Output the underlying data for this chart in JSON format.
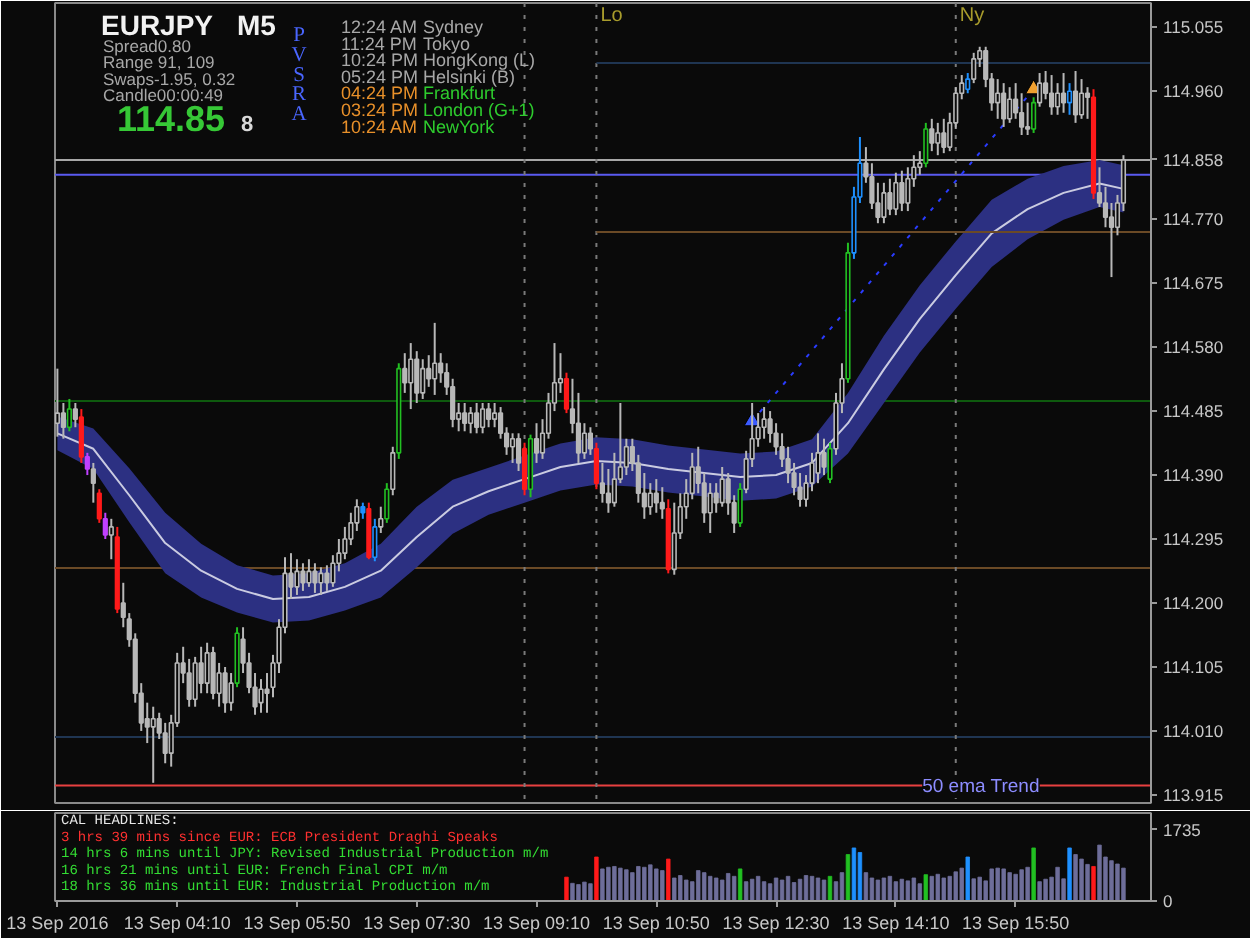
{
  "chart_data": [
    {
      "type": "candlestick",
      "title": "EURJPY",
      "subtitle": "M5",
      "x": [
        "2016-09-13T02:30",
        "2016-09-13T02:35",
        "2016-09-13T02:40",
        "2016-09-13T02:45",
        "2016-09-13T02:50",
        "2016-09-13T02:55",
        "2016-09-13T03:00",
        "2016-09-13T03:05",
        "2016-09-13T03:10",
        "2016-09-13T03:15",
        "2016-09-13T03:20",
        "2016-09-13T03:25",
        "2016-09-13T03:30",
        "2016-09-13T03:35",
        "2016-09-13T03:40",
        "2016-09-13T03:45",
        "2016-09-13T03:50",
        "2016-09-13T03:55",
        "2016-09-13T04:00",
        "2016-09-13T04:05",
        "2016-09-13T04:10",
        "2016-09-13T04:15",
        "2016-09-13T04:20",
        "2016-09-13T04:25",
        "2016-09-13T04:30",
        "2016-09-13T04:35",
        "2016-09-13T04:40",
        "2016-09-13T04:45",
        "2016-09-13T04:50",
        "2016-09-13T04:55",
        "2016-09-13T05:00",
        "2016-09-13T05:05",
        "2016-09-13T05:10",
        "2016-09-13T05:15",
        "2016-09-13T05:20",
        "2016-09-13T05:25",
        "2016-09-13T05:30",
        "2016-09-13T05:35",
        "2016-09-13T05:40",
        "2016-09-13T05:45",
        "2016-09-13T05:50",
        "2016-09-13T05:55",
        "2016-09-13T06:00",
        "2016-09-13T06:05",
        "2016-09-13T06:10",
        "2016-09-13T06:15",
        "2016-09-13T06:20",
        "2016-09-13T06:25",
        "2016-09-13T06:30",
        "2016-09-13T06:35",
        "2016-09-13T06:40",
        "2016-09-13T06:45",
        "2016-09-13T06:50",
        "2016-09-13T06:55",
        "2016-09-13T07:00",
        "2016-09-13T07:05",
        "2016-09-13T07:10",
        "2016-09-13T07:15",
        "2016-09-13T07:20",
        "2016-09-13T07:25",
        "2016-09-13T07:30",
        "2016-09-13T07:35",
        "2016-09-13T07:40",
        "2016-09-13T07:45",
        "2016-09-13T07:50",
        "2016-09-13T07:55",
        "2016-09-13T08:00",
        "2016-09-13T08:05",
        "2016-09-13T08:10",
        "2016-09-13T08:15",
        "2016-09-13T08:20",
        "2016-09-13T08:25",
        "2016-09-13T08:30",
        "2016-09-13T08:35",
        "2016-09-13T08:40",
        "2016-09-13T08:45",
        "2016-09-13T08:50",
        "2016-09-13T08:55",
        "2016-09-13T09:00",
        "2016-09-13T09:05",
        "2016-09-13T09:10",
        "2016-09-13T09:15",
        "2016-09-13T09:20",
        "2016-09-13T09:25",
        "2016-09-13T09:30",
        "2016-09-13T09:35",
        "2016-09-13T09:40",
        "2016-09-13T09:45",
        "2016-09-13T09:50",
        "2016-09-13T09:55",
        "2016-09-13T10:00",
        "2016-09-13T10:05",
        "2016-09-13T10:10",
        "2016-09-13T10:15",
        "2016-09-13T10:20",
        "2016-09-13T10:25",
        "2016-09-13T10:30",
        "2016-09-13T10:35",
        "2016-09-13T10:40",
        "2016-09-13T10:45",
        "2016-09-13T10:50",
        "2016-09-13T10:55",
        "2016-09-13T11:00",
        "2016-09-13T11:05",
        "2016-09-13T11:10",
        "2016-09-13T11:15",
        "2016-09-13T11:20",
        "2016-09-13T11:25",
        "2016-09-13T11:30",
        "2016-09-13T11:35",
        "2016-09-13T11:40",
        "2016-09-13T11:45",
        "2016-09-13T11:50",
        "2016-09-13T11:55",
        "2016-09-13T12:00",
        "2016-09-13T12:05",
        "2016-09-13T12:10",
        "2016-09-13T12:15",
        "2016-09-13T12:20",
        "2016-09-13T12:25",
        "2016-09-13T12:30",
        "2016-09-13T12:35",
        "2016-09-13T12:40",
        "2016-09-13T12:45",
        "2016-09-13T12:50",
        "2016-09-13T12:55",
        "2016-09-13T13:00",
        "2016-09-13T13:05",
        "2016-09-13T13:10",
        "2016-09-13T13:15",
        "2016-09-13T13:20",
        "2016-09-13T13:25",
        "2016-09-13T13:30",
        "2016-09-13T13:35",
        "2016-09-13T13:40",
        "2016-09-13T13:45",
        "2016-09-13T13:50",
        "2016-09-13T13:55",
        "2016-09-13T14:00",
        "2016-09-13T14:05",
        "2016-09-13T14:10",
        "2016-09-13T14:15",
        "2016-09-13T14:20",
        "2016-09-13T14:25",
        "2016-09-13T14:30",
        "2016-09-13T14:35",
        "2016-09-13T14:40",
        "2016-09-13T14:45",
        "2016-09-13T14:50",
        "2016-09-13T14:55",
        "2016-09-13T15:00",
        "2016-09-13T15:05",
        "2016-09-13T15:10",
        "2016-09-13T15:15",
        "2016-09-13T15:20",
        "2016-09-13T15:25",
        "2016-09-13T15:30",
        "2016-09-13T15:35",
        "2016-09-13T15:40",
        "2016-09-13T15:45",
        "2016-09-13T15:50",
        "2016-09-13T15:55",
        "2016-09-13T16:00",
        "2016-09-13T16:05",
        "2016-09-13T16:10",
        "2016-09-13T16:15",
        "2016-09-13T16:20",
        "2016-09-13T16:25",
        "2016-09-13T16:30",
        "2016-09-13T16:35",
        "2016-09-13T16:40",
        "2016-09-13T16:45",
        "2016-09-13T16:50",
        "2016-09-13T16:55",
        "2016-09-13T17:00",
        "2016-09-13T17:05",
        "2016-09-13T17:10",
        "2016-09-13T17:15",
        "2016-09-13T17:20"
      ],
      "ohlc": [
        [
          114.467,
          114.548,
          114.447,
          114.482
        ],
        [
          114.482,
          114.497,
          114.444,
          114.461
        ],
        [
          114.461,
          114.503,
          114.455,
          114.488
        ],
        [
          114.488,
          114.497,
          114.461,
          114.473
        ],
        [
          114.476,
          114.488,
          114.408,
          114.417
        ],
        [
          114.417,
          114.423,
          114.39,
          114.399
        ],
        [
          114.399,
          114.408,
          114.349,
          114.378
        ],
        [
          114.363,
          114.369,
          114.319,
          114.325
        ],
        [
          114.325,
          114.334,
          114.295,
          114.301
        ],
        [
          114.301,
          114.325,
          114.265,
          114.313
        ],
        [
          114.298,
          114.313,
          114.185,
          114.191
        ],
        [
          114.2,
          114.23,
          114.164,
          114.179
        ],
        [
          114.176,
          114.185,
          114.135,
          114.146
        ],
        [
          114.146,
          114.155,
          114.052,
          114.066
        ],
        [
          114.066,
          114.081,
          114.01,
          114.022
        ],
        [
          114.028,
          114.052,
          113.992,
          114.016
        ],
        [
          114.016,
          114.046,
          113.933,
          114.028
        ],
        [
          114.028,
          114.037,
          113.998,
          114.007
        ],
        [
          114.007,
          114.022,
          113.962,
          113.977
        ],
        [
          113.977,
          114.034,
          113.957,
          114.022
        ],
        [
          114.022,
          114.126,
          114.016,
          114.111
        ],
        [
          114.111,
          114.135,
          114.081,
          114.096
        ],
        [
          114.096,
          114.117,
          114.046,
          114.057
        ],
        [
          114.057,
          114.12,
          114.046,
          114.111
        ],
        [
          114.111,
          114.135,
          114.066,
          114.081
        ],
        [
          114.081,
          114.141,
          114.066,
          114.126
        ],
        [
          114.126,
          114.135,
          114.057,
          114.066
        ],
        [
          114.066,
          114.111,
          114.046,
          114.096
        ],
        [
          114.096,
          114.105,
          114.037,
          114.052
        ],
        [
          114.052,
          114.096,
          114.04,
          114.081
        ],
        [
          114.081,
          114.164,
          114.075,
          114.155
        ],
        [
          114.146,
          114.164,
          114.096,
          114.111
        ],
        [
          114.111,
          114.126,
          114.066,
          114.075
        ],
        [
          114.075,
          114.096,
          114.034,
          114.046
        ],
        [
          114.052,
          114.087,
          114.037,
          114.072
        ],
        [
          114.072,
          114.096,
          114.037,
          114.066
        ],
        [
          114.075,
          114.123,
          114.06,
          114.111
        ],
        [
          114.111,
          114.176,
          114.096,
          114.164
        ],
        [
          114.164,
          114.268,
          114.155,
          114.244
        ],
        [
          114.244,
          114.274,
          114.206,
          114.224
        ],
        [
          114.224,
          114.265,
          114.212,
          114.247
        ],
        [
          114.247,
          114.259,
          114.218,
          114.23
        ],
        [
          114.23,
          114.265,
          114.224,
          114.247
        ],
        [
          114.247,
          114.259,
          114.215,
          114.23
        ],
        [
          114.23,
          114.253,
          114.212,
          114.244
        ],
        [
          114.244,
          114.256,
          114.218,
          114.23
        ],
        [
          114.23,
          114.271,
          114.224,
          114.259
        ],
        [
          114.259,
          114.295,
          114.247,
          114.274
        ],
        [
          114.274,
          114.313,
          114.265,
          114.295
        ],
        [
          114.295,
          114.334,
          114.286,
          114.319
        ],
        [
          114.319,
          114.354,
          114.307,
          114.343
        ],
        [
          114.343,
          114.349,
          114.325,
          114.334
        ],
        [
          114.34,
          114.349,
          114.265,
          114.268
        ],
        [
          114.268,
          114.325,
          114.262,
          114.313
        ],
        [
          114.313,
          114.343,
          114.304,
          114.325
        ],
        [
          114.325,
          114.378,
          114.319,
          114.369
        ],
        [
          114.369,
          114.432,
          114.36,
          114.423
        ],
        [
          114.423,
          114.556,
          114.414,
          114.548
        ],
        [
          114.548,
          114.571,
          114.512,
          114.527
        ],
        [
          114.527,
          114.586,
          114.488,
          114.562
        ],
        [
          114.562,
          114.574,
          114.497,
          114.512
        ],
        [
          114.512,
          114.562,
          114.503,
          114.548
        ],
        [
          114.548,
          114.568,
          114.521,
          114.533
        ],
        [
          114.533,
          114.616,
          114.509,
          114.556
        ],
        [
          114.556,
          114.571,
          114.527,
          114.542
        ],
        [
          114.542,
          114.556,
          114.509,
          114.521
        ],
        [
          114.521,
          114.533,
          114.461,
          114.473
        ],
        [
          114.473,
          114.497,
          114.455,
          114.482
        ],
        [
          114.482,
          114.497,
          114.455,
          114.467
        ],
        [
          114.467,
          114.491,
          114.452,
          114.482
        ],
        [
          114.482,
          114.497,
          114.452,
          114.461
        ],
        [
          114.461,
          114.497,
          114.452,
          114.488
        ],
        [
          114.488,
          114.497,
          114.461,
          114.473
        ],
        [
          114.473,
          114.497,
          114.461,
          114.482
        ],
        [
          114.482,
          114.491,
          114.444,
          114.452
        ],
        [
          114.452,
          114.461,
          114.42,
          114.432
        ],
        [
          114.432,
          114.452,
          114.408,
          114.444
        ],
        [
          114.444,
          114.452,
          114.396,
          114.408
        ],
        [
          114.429,
          114.438,
          114.36,
          114.369
        ],
        [
          114.369,
          114.45,
          114.357,
          114.444
        ],
        [
          114.444,
          114.467,
          114.408,
          114.423
        ],
        [
          114.423,
          114.473,
          114.414,
          114.452
        ],
        [
          114.452,
          114.512,
          114.444,
          114.497
        ],
        [
          114.497,
          114.586,
          114.485,
          114.527
        ],
        [
          114.527,
          114.571,
          114.512,
          114.533
        ],
        [
          114.533,
          114.542,
          114.482,
          114.488
        ],
        [
          114.488,
          114.533,
          114.452,
          114.467
        ],
        [
          114.467,
          114.512,
          114.408,
          114.423
        ],
        [
          114.423,
          114.467,
          114.414,
          114.452
        ],
        [
          114.452,
          114.461,
          114.42,
          114.429
        ],
        [
          114.429,
          114.438,
          114.369,
          114.378
        ],
        [
          114.378,
          114.408,
          114.349,
          114.363
        ],
        [
          114.363,
          114.399,
          114.334,
          114.349
        ],
        [
          114.349,
          114.423,
          114.343,
          114.384
        ],
        [
          114.384,
          114.497,
          114.378,
          114.402
        ],
        [
          114.402,
          114.444,
          114.39,
          114.432
        ],
        [
          114.432,
          114.444,
          114.396,
          114.408
        ],
        [
          114.408,
          114.42,
          114.349,
          114.363
        ],
        [
          114.363,
          114.393,
          114.325,
          114.343
        ],
        [
          114.343,
          114.378,
          114.331,
          114.363
        ],
        [
          114.363,
          114.384,
          114.334,
          114.349
        ],
        [
          114.349,
          114.372,
          114.325,
          114.34
        ],
        [
          114.34,
          114.354,
          114.244,
          114.25
        ],
        [
          114.25,
          114.349,
          114.242,
          114.304
        ],
        [
          114.304,
          114.363,
          114.295,
          114.343
        ],
        [
          114.343,
          114.384,
          114.325,
          114.363
        ],
        [
          114.363,
          114.423,
          114.354,
          114.402
        ],
        [
          114.402,
          114.432,
          114.363,
          114.378
        ],
        [
          114.378,
          114.393,
          114.319,
          114.334
        ],
        [
          114.334,
          114.378,
          114.304,
          114.363
        ],
        [
          114.363,
          114.378,
          114.334,
          114.349
        ],
        [
          114.349,
          114.402,
          114.343,
          114.384
        ],
        [
          114.384,
          114.393,
          114.331,
          114.349
        ],
        [
          114.349,
          114.36,
          114.304,
          114.319
        ],
        [
          114.319,
          114.378,
          114.313,
          114.369
        ],
        [
          114.369,
          114.426,
          114.363,
          114.414
        ],
        [
          114.414,
          114.497,
          114.402,
          114.444
        ],
        [
          114.444,
          114.482,
          114.432,
          114.461
        ],
        [
          114.461,
          114.491,
          114.444,
          114.473
        ],
        [
          114.473,
          114.485,
          114.438,
          114.452
        ],
        [
          114.452,
          114.467,
          114.42,
          114.432
        ],
        [
          114.432,
          114.452,
          114.402,
          114.414
        ],
        [
          114.414,
          114.432,
          114.378,
          114.393
        ],
        [
          114.393,
          114.408,
          114.36,
          114.372
        ],
        [
          114.372,
          114.393,
          114.343,
          114.354
        ],
        [
          114.354,
          114.39,
          114.343,
          114.378
        ],
        [
          114.378,
          114.423,
          114.366,
          114.408
        ],
        [
          114.393,
          114.452,
          114.378,
          114.423
        ],
        [
          114.423,
          114.444,
          114.39,
          114.402
        ],
        [
          114.384,
          114.438,
          114.378,
          114.429
        ],
        [
          114.429,
          114.512,
          114.42,
          114.497
        ],
        [
          114.497,
          114.556,
          114.482,
          114.533
        ],
        [
          114.533,
          114.735,
          114.527,
          114.72
        ],
        [
          114.72,
          114.818,
          114.711,
          114.803
        ],
        [
          114.803,
          114.892,
          114.794,
          114.853
        ],
        [
          114.853,
          114.877,
          114.824,
          114.833
        ],
        [
          114.833,
          114.853,
          114.785,
          114.794
        ],
        [
          114.794,
          114.824,
          114.764,
          114.773
        ],
        [
          114.773,
          114.824,
          114.764,
          114.809
        ],
        [
          114.809,
          114.83,
          114.776,
          114.785
        ],
        [
          114.785,
          114.839,
          114.776,
          114.824
        ],
        [
          114.824,
          114.842,
          114.782,
          114.794
        ],
        [
          114.794,
          114.847,
          114.782,
          114.83
        ],
        [
          114.83,
          114.865,
          114.818,
          114.847
        ],
        [
          114.847,
          114.871,
          114.836,
          114.853
        ],
        [
          114.853,
          114.913,
          114.847,
          114.904
        ],
        [
          114.904,
          114.919,
          114.871,
          114.883
        ],
        [
          114.883,
          114.913,
          114.865,
          114.898
        ],
        [
          114.898,
          114.919,
          114.868,
          114.877
        ],
        [
          114.877,
          114.928,
          114.871,
          114.913
        ],
        [
          114.913,
          114.966,
          114.904,
          114.957
        ],
        [
          114.957,
          114.984,
          114.948,
          114.972
        ],
        [
          114.963,
          114.987,
          114.957,
          114.978
        ],
        [
          114.978,
          115.017,
          114.972,
          115.008
        ],
        [
          115.008,
          115.026,
          114.996,
          115.02
        ],
        [
          115.02,
          115.026,
          114.966,
          114.978
        ],
        [
          114.978,
          114.987,
          114.931,
          114.943
        ],
        [
          114.943,
          114.978,
          114.919,
          114.957
        ],
        [
          114.957,
          114.972,
          114.907,
          114.919
        ],
        [
          114.919,
          114.966,
          114.913,
          114.948
        ],
        [
          114.948,
          114.972,
          114.919,
          114.928
        ],
        [
          114.928,
          114.957,
          114.895,
          114.907
        ],
        [
          114.907,
          114.943,
          114.895,
          114.904
        ],
        [
          114.904,
          114.951,
          114.898,
          114.943
        ],
        [
          114.943,
          114.987,
          114.937,
          114.972
        ],
        [
          114.972,
          114.99,
          114.948,
          114.957
        ],
        [
          114.957,
          114.984,
          114.925,
          114.937
        ],
        [
          114.937,
          114.972,
          114.925,
          114.957
        ],
        [
          114.957,
          114.987,
          114.928,
          114.943
        ],
        [
          114.943,
          114.972,
          114.925,
          114.96
        ],
        [
          114.96,
          114.99,
          114.913,
          114.925
        ],
        [
          114.925,
          114.978,
          114.919,
          114.957
        ],
        [
          114.957,
          114.966,
          114.919,
          114.951
        ],
        [
          114.951,
          114.963,
          114.8,
          114.809
        ],
        [
          114.809,
          114.847,
          114.788,
          114.794
        ],
        [
          114.794,
          114.818,
          114.758,
          114.773
        ],
        [
          114.773,
          114.794,
          114.684,
          114.758
        ],
        [
          114.758,
          114.806,
          114.746,
          114.794
        ],
        [
          114.794,
          114.865,
          114.782,
          114.858
        ]
      ],
      "color": "#b8b8b8",
      "colors": [
        null,
        null,
        "#22c022",
        null,
        "#ff1a1a",
        "#c040ff",
        null,
        "#ff1a1a",
        "#c040ff",
        null,
        "#ff1a1a",
        null,
        null,
        null,
        null,
        null,
        null,
        null,
        null,
        null,
        null,
        null,
        null,
        null,
        null,
        null,
        null,
        null,
        null,
        null,
        "#22c022",
        null,
        null,
        null,
        null,
        null,
        null,
        null,
        null,
        null,
        null,
        null,
        null,
        null,
        null,
        null,
        null,
        null,
        null,
        null,
        null,
        "#1e90ff",
        "#ff1a1a",
        "#1e90ff",
        null,
        "#22c022",
        null,
        "#22c022",
        null,
        null,
        null,
        null,
        null,
        null,
        null,
        null,
        null,
        null,
        null,
        null,
        null,
        null,
        null,
        null,
        null,
        null,
        null,
        null,
        "#ff1a1a",
        "#22c022",
        null,
        null,
        null,
        null,
        null,
        "#ff1a1a",
        null,
        null,
        null,
        null,
        "#ff1a1a",
        null,
        null,
        null,
        null,
        null,
        null,
        null,
        null,
        null,
        null,
        null,
        "#ff1a1a",
        null,
        null,
        null,
        null,
        null,
        null,
        null,
        null,
        null,
        null,
        null,
        "#22c022",
        null,
        null,
        null,
        null,
        null,
        null,
        null,
        null,
        null,
        null,
        null,
        null,
        null,
        null,
        "#22c022",
        null,
        null,
        "#22c022",
        "#1e90ff",
        "#1e90ff",
        null,
        null,
        null,
        null,
        null,
        null,
        null,
        null,
        null,
        null,
        "#22c022",
        null,
        null,
        null,
        null,
        null,
        null,
        "#1e90ff",
        null,
        null,
        null,
        null,
        null,
        null,
        null,
        null,
        null,
        null,
        "#22c022",
        null,
        null,
        null,
        null,
        null,
        "#1e90ff",
        null,
        null,
        null,
        "#ff1a1a",
        null,
        null,
        null,
        null,
        null
      ],
      "xlim": [
        "2016-09-13T02:28",
        "2016-09-13T17:43"
      ],
      "ylim": [
        113.903,
        115.091
      ],
      "yticks": [
        115.055,
        {
          "value": 114.96,
          "label": "114.960"
        },
        114.858,
        {
          "value": 114.77,
          "label": "114.770"
        },
        114.675,
        {
          "value": 114.58,
          "label": "114.580"
        },
        114.485,
        {
          "value": 114.39,
          "label": "114.390"
        },
        114.295,
        {
          "value": 114.2,
          "label": "114.200"
        },
        114.105,
        {
          "value": 114.01,
          "label": "114.010"
        },
        113.915
      ],
      "tick_labels": "y",
      "series": [
        {
          "type": "line",
          "color": "#cacbe1",
          "x": [
            "2016-09-13T02:30",
            "2016-09-13T03:00",
            "2016-09-13T03:30",
            "2016-09-13T04:00",
            "2016-09-13T04:30",
            "2016-09-13T05:00",
            "2016-09-13T05:30",
            "2016-09-13T06:00",
            "2016-09-13T06:30",
            "2016-09-13T07:00",
            "2016-09-13T07:30",
            "2016-09-13T08:00",
            "2016-09-13T08:30",
            "2016-09-13T09:00",
            "2016-09-13T09:30",
            "2016-09-13T10:00",
            "2016-09-13T10:30",
            "2016-09-13T11:00",
            "2016-09-13T11:30",
            "2016-09-13T12:00",
            "2016-09-13T12:30",
            "2016-09-13T13:00",
            "2016-09-13T13:30",
            "2016-09-13T14:00",
            "2016-09-13T14:30",
            "2016-09-13T15:00",
            "2016-09-13T15:30",
            "2016-09-13T16:00",
            "2016-09-13T16:30",
            "2016-09-13T17:00",
            "2016-09-13T17:20"
          ],
          "values": [
            114.452,
            114.429,
            114.36,
            114.289,
            114.248,
            114.221,
            114.206,
            114.209,
            114.224,
            114.248,
            114.298,
            114.343,
            114.366,
            114.384,
            114.402,
            114.411,
            114.408,
            114.399,
            114.393,
            114.387,
            114.39,
            114.408,
            114.467,
            114.547,
            114.622,
            114.687,
            114.749,
            114.785,
            114.809,
            114.823,
            114.815
          ],
          "lower": [
            114.427,
            114.399,
            114.32,
            114.244,
            114.208,
            114.186,
            114.171,
            114.174,
            114.189,
            114.208,
            114.253,
            114.303,
            114.331,
            114.349,
            114.367,
            114.376,
            114.373,
            114.364,
            114.358,
            114.352,
            114.355,
            114.373,
            114.422,
            114.497,
            114.572,
            114.637,
            114.699,
            114.74,
            114.769,
            114.788,
            114.78
          ],
          "upper": [
            114.477,
            114.459,
            114.4,
            114.334,
            114.288,
            114.256,
            114.241,
            114.244,
            114.259,
            114.288,
            114.343,
            114.383,
            114.401,
            114.419,
            114.437,
            114.446,
            114.443,
            114.434,
            114.428,
            114.422,
            114.425,
            114.443,
            114.512,
            114.597,
            114.672,
            114.737,
            114.799,
            114.83,
            114.849,
            114.858,
            114.85
          ]
        },
        {
          "type": "line",
          "color": "#1f3552",
          "x": [
            "2016-09-13T10:00",
            "2016-09-13T17:43"
          ],
          "values": [
            115.002,
            115.002
          ]
        },
        {
          "type": "line",
          "color": "#6b4a26",
          "x": [
            "2016-09-13T10:00",
            "2016-09-13T17:43"
          ],
          "values": [
            114.751,
            114.751
          ]
        },
        {
          "type": "line",
          "color": "#2a3cff",
          "line_style": "dotted",
          "x": [
            "2016-09-13T12:10",
            "2016-09-13T16:05"
          ],
          "values": [
            114.47,
            114.963
          ]
        },
        {
          "type": "scatter",
          "marker": "triangle",
          "colors": [
            "#3a5aff",
            "#f0a030"
          ],
          "x": [
            "2016-09-13T12:10",
            "2016-09-13T16:05"
          ],
          "values": [
            114.47,
            114.963
          ]
        }
      ],
      "ref_lines": [
        {
          "axis": "y",
          "value": 114.858,
          "color": "#a8a8a8"
        },
        {
          "axis": "y",
          "value": 114.836,
          "color": "#5a5af0"
        },
        {
          "axis": "y",
          "value": 114.5,
          "color": "#0e5a0e"
        },
        {
          "axis": "y",
          "value": 114.252,
          "color": "#6b4a26"
        },
        {
          "axis": "y",
          "value": 114.001,
          "color": "#1f3552"
        },
        {
          "axis": "y",
          "value": 113.929,
          "color": "#e84040"
        },
        {
          "axis": "x",
          "value": "2016-09-13T09:00",
          "color": "#7a7a7a",
          "line_style": "dotted"
        },
        {
          "axis": "x",
          "value": "2016-09-13T10:00",
          "label": "Lo",
          "color": "#7a7a7a",
          "line_style": "dotted"
        },
        {
          "axis": "x",
          "value": "2016-09-13T15:00",
          "label": "Ny",
          "color": "#7a7a7a",
          "line_style": "dotted"
        }
      ],
      "annotations": [
        "Spread0.80",
        "Range 91, 109",
        "Swaps-1.95, 0.32",
        "Candle00:00:49",
        "114.85",
        "8",
        "PVSRA",
        "12:24 AM",
        "Sydney",
        "11:24 PM",
        "Tokyo",
        "10:24 PM",
        "HongKong  (L)",
        "05:24 PM",
        "Helsinki  (B)",
        "04:24 PM",
        "Frankfurt",
        "03:24 PM",
        "London  (G+1)",
        "10:24 AM",
        "NewYork",
        "50 ema Trend"
      ]
    },
    {
      "type": "bar",
      "x": [
        "2016-09-13T09:35",
        "2016-09-13T09:40",
        "2016-09-13T09:45",
        "2016-09-13T09:50",
        "2016-09-13T09:55",
        "2016-09-13T10:00",
        "2016-09-13T10:05",
        "2016-09-13T10:10",
        "2016-09-13T10:15",
        "2016-09-13T10:20",
        "2016-09-13T10:25",
        "2016-09-13T10:30",
        "2016-09-13T10:35",
        "2016-09-13T10:40",
        "2016-09-13T10:45",
        "2016-09-13T10:50",
        "2016-09-13T10:55",
        "2016-09-13T11:00",
        "2016-09-13T11:05",
        "2016-09-13T11:10",
        "2016-09-13T11:15",
        "2016-09-13T11:20",
        "2016-09-13T11:25",
        "2016-09-13T11:30",
        "2016-09-13T11:35",
        "2016-09-13T11:40",
        "2016-09-13T11:45",
        "2016-09-13T11:50",
        "2016-09-13T11:55",
        "2016-09-13T12:00",
        "2016-09-13T12:05",
        "2016-09-13T12:10",
        "2016-09-13T12:15",
        "2016-09-13T12:20",
        "2016-09-13T12:25",
        "2016-09-13T12:30",
        "2016-09-13T12:35",
        "2016-09-13T12:40",
        "2016-09-13T12:45",
        "2016-09-13T12:50",
        "2016-09-13T12:55",
        "2016-09-13T13:00",
        "2016-09-13T13:05",
        "2016-09-13T13:10",
        "2016-09-13T13:15",
        "2016-09-13T13:20",
        "2016-09-13T13:25",
        "2016-09-13T13:30",
        "2016-09-13T13:35",
        "2016-09-13T13:40",
        "2016-09-13T13:45",
        "2016-09-13T13:50",
        "2016-09-13T13:55",
        "2016-09-13T14:00",
        "2016-09-13T14:05",
        "2016-09-13T14:10",
        "2016-09-13T14:15",
        "2016-09-13T14:20",
        "2016-09-13T14:25",
        "2016-09-13T14:30",
        "2016-09-13T14:35",
        "2016-09-13T14:40",
        "2016-09-13T14:45",
        "2016-09-13T14:50",
        "2016-09-13T14:55",
        "2016-09-13T15:00",
        "2016-09-13T15:05",
        "2016-09-13T15:10",
        "2016-09-13T15:15",
        "2016-09-13T15:20",
        "2016-09-13T15:25",
        "2016-09-13T15:30",
        "2016-09-13T15:35",
        "2016-09-13T15:40",
        "2016-09-13T15:45",
        "2016-09-13T15:50",
        "2016-09-13T15:55",
        "2016-09-13T16:00",
        "2016-09-13T16:05",
        "2016-09-13T16:10",
        "2016-09-13T16:15",
        "2016-09-13T16:20",
        "2016-09-13T16:25",
        "2016-09-13T16:30",
        "2016-09-13T16:35",
        "2016-09-13T16:40",
        "2016-09-13T16:45",
        "2016-09-13T16:50",
        "2016-09-13T16:55",
        "2016-09-13T17:00",
        "2016-09-13T17:05",
        "2016-09-13T17:10",
        "2016-09-13T17:15",
        "2016-09-13T17:20"
      ],
      "values": [
        580,
        430,
        400,
        460,
        420,
        1070,
        780,
        820,
        840,
        800,
        760,
        690,
        840,
        820,
        880,
        780,
        740,
        1020,
        560,
        620,
        510,
        470,
        740,
        690,
        600,
        560,
        510,
        670,
        600,
        780,
        470,
        530,
        600,
        470,
        420,
        560,
        510,
        600,
        450,
        530,
        620,
        600,
        560,
        510,
        600,
        470,
        690,
        1130,
        1290,
        1180,
        690,
        560,
        510,
        560,
        600,
        470,
        530,
        490,
        560,
        420,
        640,
        600,
        650,
        560,
        600,
        710,
        800,
        1070,
        540,
        580,
        490,
        780,
        800,
        780,
        690,
        650,
        760,
        820,
        1290,
        470,
        530,
        580,
        820,
        540,
        1290,
        1130,
        1020,
        890,
        840,
        1360,
        1070,
        980,
        900,
        800
      ],
      "color": "#6e6e9a",
      "colors": [
        "#ff1a1a",
        null,
        null,
        null,
        null,
        "#ff1a1a",
        null,
        null,
        null,
        null,
        null,
        null,
        null,
        null,
        null,
        null,
        null,
        "#ff1a1a",
        null,
        null,
        null,
        null,
        null,
        null,
        null,
        null,
        null,
        null,
        null,
        "#22c022",
        null,
        null,
        null,
        null,
        null,
        null,
        null,
        null,
        null,
        null,
        null,
        null,
        null,
        null,
        "#22c022",
        null,
        null,
        "#22c022",
        "#1e90ff",
        "#1e90ff",
        null,
        null,
        null,
        null,
        null,
        null,
        null,
        null,
        null,
        null,
        "#22c022",
        null,
        null,
        null,
        null,
        null,
        null,
        "#1e90ff",
        null,
        null,
        null,
        null,
        null,
        null,
        null,
        null,
        null,
        null,
        "#22c022",
        null,
        null,
        null,
        null,
        null,
        "#1e90ff",
        null,
        null,
        null,
        "#ff1a1a",
        null,
        null,
        null,
        null,
        null
      ],
      "xlim": [
        "2016-09-13T02:28",
        "2016-09-13T17:43"
      ],
      "xticks": [
        {
          "value": "2016-09-13T02:30",
          "label": "13 Sep 2016"
        },
        {
          "value": "2016-09-13T04:10",
          "label": "13 Sep 04:10"
        },
        {
          "value": "2016-09-13T05:50",
          "label": "13 Sep 05:50"
        },
        {
          "value": "2016-09-13T07:30",
          "label": "13 Sep 07:30"
        },
        {
          "value": "2016-09-13T09:10",
          "label": "13 Sep 09:10"
        },
        {
          "value": "2016-09-13T10:50",
          "label": "13 Sep 10:50"
        },
        {
          "value": "2016-09-13T12:30",
          "label": "13 Sep 12:30"
        },
        {
          "value": "2016-09-13T14:10",
          "label": "13 Sep 14:10"
        },
        {
          "value": "2016-09-13T15:50",
          "label": "13 Sep 15:50"
        }
      ],
      "ylim": [
        0,
        2140
      ],
      "yticks": [
        0,
        1735
      ],
      "annotations": [
        "CAL HEADLINES:",
        "3 hrs 39 mins since EUR: ECB President Draghi Speaks",
        "14 hrs 6 mins until JPY: Revised Industrial Production m/m",
        "16 hrs 21 mins until EUR: French Final CPI m/m",
        "18 hrs 36 mins until EUR: Industrial Production m/m"
      ]
    }
  ]
}
